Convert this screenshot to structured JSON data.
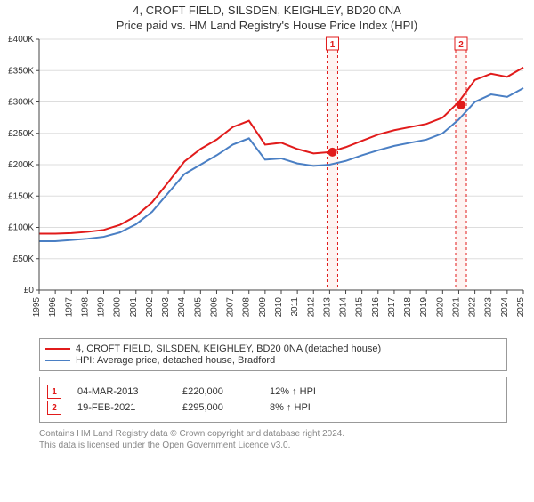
{
  "title_line1": "4, CROFT FIELD, SILSDEN, KEIGHLEY, BD20 0NA",
  "title_line2": "Price paid vs. HM Land Registry's House Price Index (HPI)",
  "title_fontsize": 13,
  "chart": {
    "type": "line",
    "background_color": "#ffffff",
    "grid_color": "#dddddd",
    "axis_color": "#444444",
    "tick_fontsize": 10,
    "x_start_year": 1995,
    "x_end_year": 2025,
    "x_tick_years": [
      1995,
      1996,
      1997,
      1998,
      1999,
      2000,
      2001,
      2002,
      2003,
      2004,
      2005,
      2006,
      2007,
      2008,
      2009,
      2010,
      2011,
      2012,
      2013,
      2014,
      2015,
      2016,
      2017,
      2018,
      2019,
      2020,
      2021,
      2022,
      2023,
      2024,
      2025
    ],
    "y_min": 0,
    "y_max": 400000,
    "y_tick_step": 50000,
    "y_tick_labels": [
      "£0",
      "£50K",
      "£100K",
      "£150K",
      "£200K",
      "£250K",
      "£300K",
      "£350K",
      "£400K"
    ],
    "series": [
      {
        "name": "4, CROFT FIELD, SILSDEN, KEIGHLEY, BD20 0NA (detached house)",
        "color": "#e11b1b",
        "line_width": 2,
        "values": [
          90000,
          90000,
          91000,
          93000,
          96000,
          104000,
          118000,
          140000,
          172000,
          205000,
          225000,
          240000,
          260000,
          270000,
          232000,
          235000,
          225000,
          218000,
          220000,
          228000,
          238000,
          248000,
          255000,
          260000,
          265000,
          275000,
          300000,
          335000,
          345000,
          340000,
          355000
        ]
      },
      {
        "name": "HPI: Average price, detached house, Bradford",
        "color": "#4a7fc4",
        "line_width": 2,
        "values": [
          78000,
          78000,
          80000,
          82000,
          85000,
          92000,
          105000,
          125000,
          155000,
          185000,
          200000,
          215000,
          232000,
          242000,
          208000,
          210000,
          202000,
          198000,
          200000,
          206000,
          215000,
          223000,
          230000,
          235000,
          240000,
          250000,
          272000,
          300000,
          312000,
          308000,
          322000
        ]
      }
    ],
    "sale_band_color": "#e11b1b",
    "sale_band_fill": "#fdecea",
    "sale_marker_color": "#e11b1b",
    "sales": [
      {
        "n": "1",
        "year": 2013.17,
        "price": 220000
      },
      {
        "n": "2",
        "year": 2021.14,
        "price": 295000
      }
    ]
  },
  "legend": {
    "rows": [
      {
        "color": "#e11b1b",
        "label": "4, CROFT FIELD, SILSDEN, KEIGHLEY, BD20 0NA (detached house)"
      },
      {
        "color": "#4a7fc4",
        "label": "HPI: Average price, detached house, Bradford"
      }
    ]
  },
  "sales_table": {
    "rows": [
      {
        "n": "1",
        "date": "04-MAR-2013",
        "price": "£220,000",
        "delta": "12% ↑ HPI"
      },
      {
        "n": "2",
        "date": "19-FEB-2021",
        "price": "£295,000",
        "delta": "8% ↑ HPI"
      }
    ],
    "marker_border": "#e11b1b",
    "marker_text": "#e11b1b"
  },
  "footnote_line1": "Contains HM Land Registry data © Crown copyright and database right 2024.",
  "footnote_line2": "This data is licensed under the Open Government Licence v3.0."
}
